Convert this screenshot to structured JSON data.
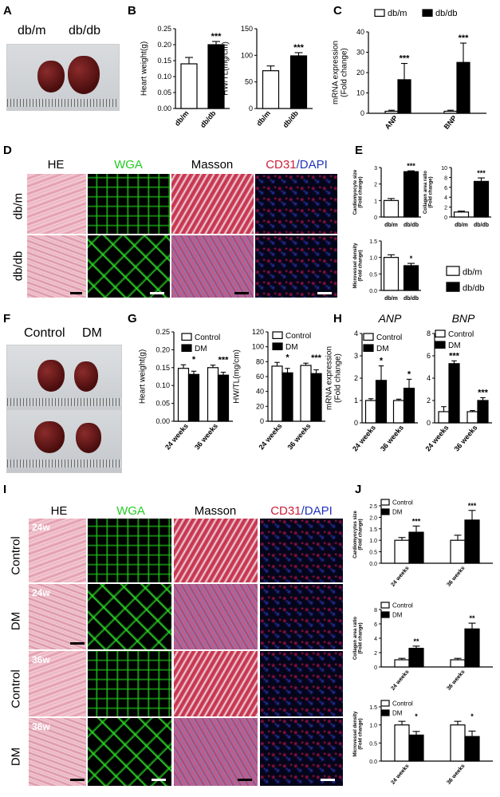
{
  "panels": {
    "A": {
      "letter": "A",
      "label_left": "db/m",
      "label_right": "db/db"
    },
    "B": {
      "letter": "B"
    },
    "C": {
      "letter": "C"
    },
    "D": {
      "letter": "D",
      "cols": [
        "HE",
        "WGA",
        "Masson"
      ],
      "cd31_a": "CD31",
      "cd31_b": "/DAPI",
      "rows": [
        "db/m",
        "db/db"
      ]
    },
    "E": {
      "letter": "E"
    },
    "F": {
      "letter": "F",
      "label_left": "Control",
      "label_right": "DM"
    },
    "G": {
      "letter": "G"
    },
    "H": {
      "letter": "H"
    },
    "I": {
      "letter": "I",
      "cols": [
        "HE",
        "WGA",
        "Masson"
      ],
      "cd31_a": "CD31",
      "cd31_b": "/DAPI",
      "rows": [
        "Control",
        "DM",
        "Control",
        "DM"
      ],
      "tags": [
        "24w",
        "24w",
        "36w",
        "36w"
      ]
    },
    "J": {
      "letter": "J"
    }
  },
  "colors": {
    "white_bar": "#ffffff",
    "black_bar": "#000000",
    "wga_green": "#22cc22",
    "cd31_red": "#cc1f3a",
    "dapi_blue": "#2233bb"
  },
  "chart_data": [
    {
      "id": "B1",
      "type": "bar",
      "ylabel": "Heart weight(g)",
      "categories": [
        "db/m",
        "db/db"
      ],
      "values": [
        0.14,
        0.2
      ],
      "errors": [
        0.02,
        0.01
      ],
      "ylim": [
        0,
        0.25
      ],
      "yticks": [
        0.0,
        0.05,
        0.1,
        0.15,
        0.2,
        0.25
      ],
      "tick_labels": [
        "0.00",
        "0.05",
        "0.10",
        "0.15",
        "0.20",
        "0.25"
      ],
      "annotations": [
        "",
        "***"
      ]
    },
    {
      "id": "B2",
      "type": "bar",
      "ylabel": "HW/TL(mg/cm)",
      "categories": [
        "db/m",
        "db/db"
      ],
      "values": [
        71,
        99
      ],
      "errors": [
        9,
        6
      ],
      "ylim": [
        0,
        150
      ],
      "yticks": [
        0,
        50,
        100,
        150
      ],
      "tick_labels": [
        "0",
        "50",
        "100",
        "150"
      ],
      "annotations": [
        "",
        "***"
      ]
    },
    {
      "id": "C",
      "type": "bar",
      "ylabel": "mRNA expression (Fold change)",
      "legend": [
        "db/m",
        "db/db"
      ],
      "legend_position": "top",
      "categories": [
        "ANP",
        "BNP"
      ],
      "series": [
        {
          "name": "db/m",
          "values": [
            1,
            1
          ],
          "errors": [
            0.5,
            0.5
          ]
        },
        {
          "name": "db/db",
          "values": [
            16.5,
            25
          ],
          "errors": [
            8,
            9.5
          ]
        }
      ],
      "ylim": [
        0,
        40
      ],
      "yticks": [
        0,
        10,
        20,
        30,
        40
      ],
      "tick_labels": [
        "0",
        "10",
        "20",
        "30",
        "40"
      ],
      "annotations": [
        "***",
        "***"
      ]
    },
    {
      "id": "E1",
      "type": "bar",
      "ylabel": "Cardiomyocyte size (Fold change)",
      "categories": [
        "db/m",
        "db/db"
      ],
      "values": [
        1.0,
        2.75
      ],
      "errors": [
        0.12,
        0.05
      ],
      "ylim": [
        0,
        3
      ],
      "yticks": [
        0,
        1,
        2,
        3
      ],
      "tick_labels": [
        "0",
        "1",
        "2",
        "3"
      ],
      "annotations": [
        "",
        "***"
      ]
    },
    {
      "id": "E2",
      "type": "bar",
      "ylabel": "Collagen area ratio (Fold change)",
      "categories": [
        "db/m",
        "db/db"
      ],
      "values": [
        1.0,
        7.2
      ],
      "errors": [
        0.2,
        0.7
      ],
      "ylim": [
        0,
        10
      ],
      "yticks": [
        0,
        2,
        4,
        6,
        8,
        10
      ],
      "tick_labels": [
        "0",
        "2",
        "4",
        "6",
        "8",
        "10"
      ],
      "annotations": [
        "",
        "***"
      ]
    },
    {
      "id": "E3",
      "type": "bar",
      "ylabel": "Microvessel density (Fold change)",
      "categories": [
        "db/m",
        "db/db"
      ],
      "values": [
        1.0,
        0.75
      ],
      "errors": [
        0.08,
        0.07
      ],
      "ylim": [
        0,
        1.5
      ],
      "yticks": [
        0.0,
        0.5,
        1.0,
        1.5
      ],
      "tick_labels": [
        "0.0",
        "0.5",
        "1.0",
        "1.5"
      ],
      "annotations": [
        "",
        "*"
      ],
      "legend": [
        "db/m",
        "db/db"
      ]
    },
    {
      "id": "G1",
      "type": "bar",
      "ylabel": "Heart weight(g)",
      "legend": [
        "Control",
        "DM"
      ],
      "categories": [
        "24 weeks",
        "36 weeks"
      ],
      "series": [
        {
          "name": "Control",
          "values": [
            0.148,
            0.15
          ],
          "errors": [
            0.01,
            0.007
          ]
        },
        {
          "name": "DM",
          "values": [
            0.131,
            0.129
          ],
          "errors": [
            0.009,
            0.008
          ]
        }
      ],
      "ylim": [
        0,
        0.25
      ],
      "yticks": [
        0.0,
        0.05,
        0.1,
        0.15,
        0.2,
        0.25
      ],
      "tick_labels": [
        "0.00",
        "0.05",
        "0.10",
        "0.15",
        "0.20",
        "0.25"
      ],
      "annotations": [
        "*",
        "***"
      ]
    },
    {
      "id": "G2",
      "type": "bar",
      "ylabel": "HW/TL(mg/cm)",
      "legend": [
        "Control",
        "DM"
      ],
      "categories": [
        "24 weeks",
        "36 weeks"
      ],
      "series": [
        {
          "name": "Control",
          "values": [
            74,
            75
          ],
          "errors": [
            5,
            3
          ]
        },
        {
          "name": "DM",
          "values": [
            65,
            64
          ],
          "errors": [
            6,
            5
          ]
        }
      ],
      "ylim": [
        0,
        120
      ],
      "yticks": [
        0,
        20,
        40,
        60,
        80,
        100,
        120
      ],
      "tick_labels": [
        "0",
        "20",
        "40",
        "60",
        "80",
        "100",
        "120"
      ],
      "annotations": [
        "*",
        "***"
      ]
    },
    {
      "id": "H1",
      "type": "bar",
      "title": "ANP",
      "ylabel": "mRNA expression (Fold change)",
      "legend": [
        "Control",
        "DM"
      ],
      "categories": [
        "24 weeks",
        "36 weeks"
      ],
      "series": [
        {
          "name": "Control",
          "values": [
            1.0,
            1.0
          ],
          "errors": [
            0.08,
            0.06
          ]
        },
        {
          "name": "DM",
          "values": [
            1.9,
            1.55
          ],
          "errors": [
            0.65,
            0.4
          ]
        }
      ],
      "ylim": [
        0,
        4
      ],
      "yticks": [
        0,
        1,
        2,
        3,
        4
      ],
      "tick_labels": [
        "0",
        "1",
        "2",
        "3",
        "4"
      ],
      "annotations": [
        "*",
        "*"
      ]
    },
    {
      "id": "H2",
      "type": "bar",
      "title": "BNP",
      "legend": [
        "Control",
        "DM"
      ],
      "categories": [
        "24 weeks",
        "36 weeks"
      ],
      "series": [
        {
          "name": "Control",
          "values": [
            1.0,
            1.0
          ],
          "errors": [
            0.45,
            0.1
          ]
        },
        {
          "name": "DM",
          "values": [
            5.3,
            2.0
          ],
          "errors": [
            0.25,
            0.25
          ]
        }
      ],
      "ylim": [
        0,
        8
      ],
      "yticks": [
        0,
        2,
        4,
        6,
        8
      ],
      "tick_labels": [
        "0",
        "2",
        "4",
        "6",
        "8"
      ],
      "annotations": [
        "***",
        "***"
      ]
    },
    {
      "id": "J1",
      "type": "bar",
      "ylabel": "Cardiomyocytes size (Fold change)",
      "legend": [
        "Control",
        "DM"
      ],
      "categories": [
        "24 weeks",
        "36 weeks"
      ],
      "series": [
        {
          "name": "Control",
          "values": [
            1.0,
            1.0
          ],
          "errors": [
            0.12,
            0.22
          ]
        },
        {
          "name": "DM",
          "values": [
            1.35,
            1.88
          ],
          "errors": [
            0.27,
            0.42
          ]
        }
      ],
      "ylim": [
        0,
        2.5
      ],
      "yticks": [
        0.0,
        0.5,
        1.0,
        1.5,
        2.0,
        2.5
      ],
      "tick_labels": [
        "0.0",
        "0.5",
        "1.0",
        "1.5",
        "2.0",
        "2.5"
      ],
      "annotations": [
        "***",
        "***"
      ]
    },
    {
      "id": "J2",
      "type": "bar",
      "ylabel": "Collagen area ratio (Fold change)",
      "legend": [
        "Control",
        "DM"
      ],
      "categories": [
        "24 weeks",
        "36 weeks"
      ],
      "series": [
        {
          "name": "Control",
          "values": [
            1.0,
            1.0
          ],
          "errors": [
            0.2,
            0.2
          ]
        },
        {
          "name": "DM",
          "values": [
            2.6,
            5.3
          ],
          "errors": [
            0.3,
            0.8
          ]
        }
      ],
      "ylim": [
        0,
        8
      ],
      "yticks": [
        0,
        2,
        4,
        6,
        8
      ],
      "tick_labels": [
        "0",
        "2",
        "4",
        "6",
        "8"
      ],
      "annotations": [
        "**",
        "**"
      ]
    },
    {
      "id": "J3",
      "type": "bar",
      "ylabel": "Microvessel density (Fold change)",
      "legend": [
        "Control",
        "DM"
      ],
      "categories": [
        "24 weeks",
        "36 weeks"
      ],
      "series": [
        {
          "name": "Control",
          "values": [
            1.0,
            1.0
          ],
          "errors": [
            0.1,
            0.1
          ]
        },
        {
          "name": "DM",
          "values": [
            0.72,
            0.68
          ],
          "errors": [
            0.1,
            0.15
          ]
        }
      ],
      "ylim": [
        0,
        1.5
      ],
      "yticks": [
        0.0,
        0.5,
        1.0,
        1.5
      ],
      "tick_labels": [
        "0.0",
        "0.5",
        "1.0",
        "1.5"
      ],
      "annotations": [
        "*",
        "*"
      ]
    }
  ]
}
